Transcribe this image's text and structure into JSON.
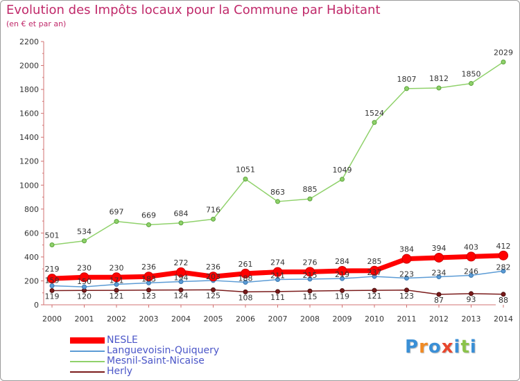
{
  "header": {
    "title": "Evolution des Impôts locaux pour la Commune par Habitant",
    "subtitle": "(en € et par an)"
  },
  "logo": {
    "text": "Proxiti",
    "letters": [
      "P",
      "r",
      "o",
      "x",
      "i",
      "t",
      "i"
    ],
    "colors": [
      "#3a8fd6",
      "#f08a24",
      "#3a8fd6",
      "#e8462c",
      "#3a8fd6",
      "#8bc34a",
      "#3a8fd6"
    ]
  },
  "chart_data": {
    "type": "line",
    "title": "Evolution des Impôts locaux pour la Commune par Habitant",
    "subtitle": "(en € et par an)",
    "x": [
      "2000",
      "2001",
      "2002",
      "2003",
      "2004",
      "2005",
      "2006",
      "2007",
      "2008",
      "2009",
      "2010",
      "2011",
      "2012",
      "2013",
      "2014"
    ],
    "ylim": [
      0,
      2200
    ],
    "yticks": [
      "0",
      "200",
      "400",
      "600",
      "800",
      "1000",
      "1200",
      "1400",
      "1600",
      "1800",
      "2000",
      "2200"
    ],
    "grid": false,
    "legend": "bottom-left",
    "series": [
      {
        "name": "NESLE",
        "color": "#ff0000",
        "values": [
          219,
          230,
          230,
          236,
          272,
          236,
          261,
          274,
          276,
          284,
          285,
          384,
          394,
          403,
          412
        ],
        "labels": [
          "219",
          "230",
          "230",
          "236",
          "272",
          "236",
          "261",
          "274",
          "276",
          "284",
          "285",
          "384",
          "394",
          "403",
          "412"
        ]
      },
      {
        "name": "Languevoisin-Quiquery",
        "color": "#5b9bd5",
        "values": [
          159,
          150,
          171,
          183,
          194,
          203,
          188,
          211,
          215,
          219,
          237,
          223,
          234,
          246,
          282
        ],
        "labels": [
          "159",
          "150",
          "171",
          "183",
          "194",
          "203",
          "188",
          "211",
          "215",
          "219",
          "237",
          "223",
          "234",
          "246",
          "282"
        ]
      },
      {
        "name": "Mesnil-Saint-Nicaise",
        "color": "#8fd16a",
        "values": [
          501,
          534,
          697,
          669,
          684,
          716,
          1051,
          863,
          885,
          1049,
          1524,
          1807,
          1812,
          1850,
          2029
        ],
        "labels": [
          "501",
          "534",
          "697",
          "669",
          "684",
          "716",
          "1051",
          "863",
          "885",
          "1049",
          "1524",
          "1807",
          "1812",
          "1850",
          "2029"
        ]
      },
      {
        "name": "Herly",
        "color": "#7a1a1a",
        "values": [
          119,
          120,
          121,
          123,
          124,
          125,
          108,
          111,
          115,
          119,
          121,
          123,
          87,
          93,
          88
        ],
        "labels": [
          "119",
          "120",
          "121",
          "123",
          "124",
          "125",
          "108",
          "111",
          "115",
          "119",
          "121",
          "123",
          "87",
          "93",
          "88"
        ]
      }
    ]
  }
}
